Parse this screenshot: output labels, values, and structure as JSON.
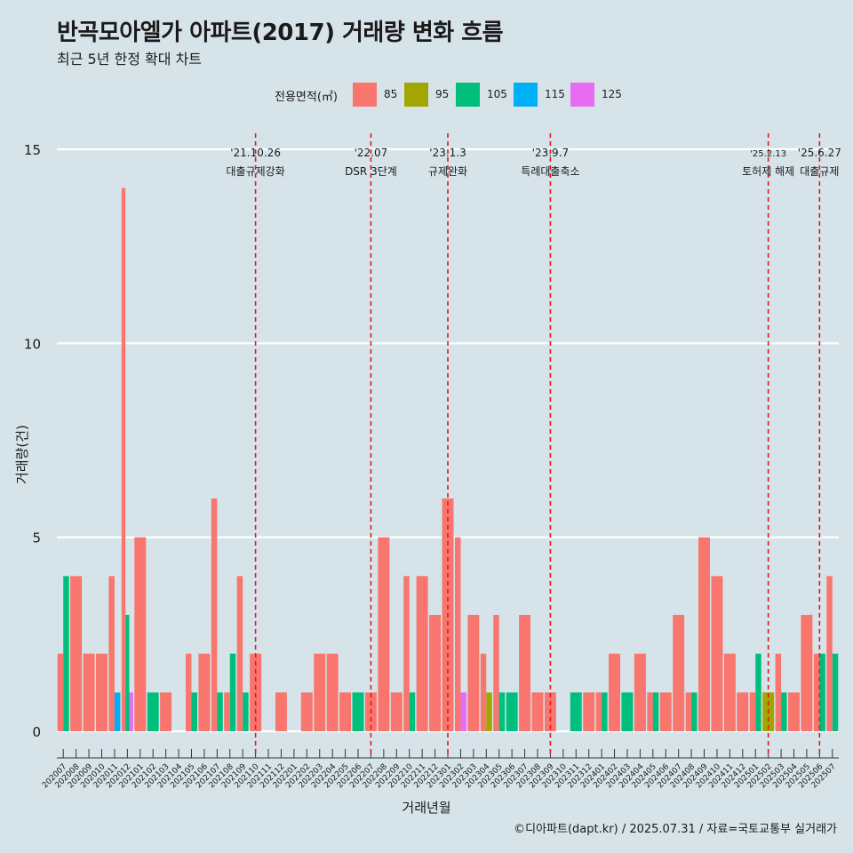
{
  "title": "반곡모아엘가 아파트(2017) 거래량 변화 흐름",
  "subtitle": "최근 5년 한정 확대 차트",
  "legend": {
    "title": "전용면적(㎡)",
    "items": [
      {
        "label": "85",
        "color": "#f8766d"
      },
      {
        "label": "95",
        "color": "#a3a500"
      },
      {
        "label": "105",
        "color": "#00bf7d"
      },
      {
        "label": "115",
        "color": "#00b0f6"
      },
      {
        "label": "125",
        "color": "#e76bf3"
      }
    ]
  },
  "caption": "©디아파트(dapt.kr) / 2025.07.31 / 자료=국토교통부 실거래가",
  "chart_data": {
    "type": "bar",
    "xlabel": "거래년월",
    "ylabel": "거래량(건)",
    "ylim": [
      0,
      15
    ],
    "yticks": [
      0,
      5,
      10,
      15
    ],
    "grid": "horizontal",
    "legend_position": "top",
    "categories": [
      "202007",
      "202008",
      "202009",
      "202010",
      "202011",
      "202012",
      "202101",
      "202102",
      "202103",
      "202104",
      "202105",
      "202106",
      "202107",
      "202108",
      "202109",
      "202110",
      "202111",
      "202112",
      "202201",
      "202202",
      "202203",
      "202204",
      "202205",
      "202206",
      "202207",
      "202208",
      "202209",
      "202210",
      "202211",
      "202212",
      "202301",
      "202302",
      "202303",
      "202304",
      "202305",
      "202306",
      "202307",
      "202308",
      "202309",
      "202310",
      "202311",
      "202312",
      "202401",
      "202402",
      "202403",
      "202404",
      "202405",
      "202406",
      "202407",
      "202408",
      "202409",
      "202410",
      "202411",
      "202412",
      "202501",
      "202502",
      "202503",
      "202504",
      "202505",
      "202506",
      "202507"
    ],
    "tick_labels": [
      "202007",
      "202008",
      "202009",
      "202010",
      "202011",
      "202012",
      "202101",
      "202102",
      "202103",
      "202104",
      "202105",
      "202106",
      "202107",
      "202108",
      "202109",
      "202110",
      "202111",
      "202112",
      "202201",
      "202202",
      "202203",
      "202204",
      "202205",
      "202206",
      "202207",
      "202208",
      "202209",
      "202210",
      "202211",
      "202212",
      "202301",
      "202302",
      "202303",
      "202304",
      "202305",
      "202306",
      "202307",
      "202308",
      "202309",
      "202310",
      "202311",
      "202312",
      "202401",
      "202402",
      "202403",
      "202404",
      "202405",
      "202406",
      "202407",
      "202408",
      "202409",
      "202410",
      "202411",
      "202412",
      "202501",
      "202502",
      "202503",
      "202504",
      "202505",
      "202506",
      "202507"
    ],
    "series": [
      {
        "name": "85",
        "color": "#f8766d",
        "values": [
          2,
          4,
          2,
          2,
          4,
          14,
          5,
          0,
          1,
          0,
          2,
          2,
          6,
          1,
          4,
          2,
          0,
          1,
          0,
          1,
          2,
          2,
          1,
          0,
          1,
          5,
          1,
          4,
          4,
          3,
          6,
          5,
          3,
          2,
          3,
          0,
          3,
          1,
          1,
          0,
          0,
          1,
          1,
          2,
          0,
          2,
          1,
          1,
          3,
          1,
          5,
          4,
          2,
          1,
          1,
          0,
          2,
          1,
          3,
          2,
          4
        ]
      },
      {
        "name": "95",
        "color": "#a3a500",
        "values": [
          0,
          0,
          0,
          0,
          0,
          0,
          0,
          0,
          0,
          0,
          0,
          0,
          0,
          0,
          0,
          0,
          0,
          0,
          0,
          0,
          0,
          0,
          0,
          0,
          0,
          0,
          0,
          0,
          0,
          0,
          0,
          0,
          0,
          1,
          0,
          0,
          0,
          0,
          0,
          0,
          0,
          0,
          0,
          0,
          0,
          0,
          0,
          0,
          0,
          0,
          0,
          0,
          0,
          0,
          0,
          1,
          0,
          0,
          0,
          0,
          0
        ]
      },
      {
        "name": "105",
        "color": "#00bf7d",
        "values": [
          4,
          0,
          0,
          0,
          0,
          3,
          0,
          1,
          0,
          0,
          1,
          0,
          1,
          2,
          1,
          0,
          0,
          0,
          0,
          0,
          0,
          0,
          0,
          1,
          0,
          0,
          0,
          1,
          0,
          0,
          0,
          0,
          0,
          0,
          1,
          1,
          0,
          0,
          0,
          0,
          1,
          0,
          1,
          0,
          1,
          0,
          1,
          0,
          0,
          1,
          0,
          0,
          0,
          0,
          2,
          0,
          1,
          0,
          0,
          2,
          2
        ]
      },
      {
        "name": "115",
        "color": "#00b0f6",
        "values": [
          0,
          0,
          0,
          0,
          1,
          0,
          0,
          0,
          0,
          0,
          0,
          0,
          0,
          0,
          0,
          0,
          0,
          0,
          0,
          0,
          0,
          0,
          0,
          0,
          0,
          0,
          0,
          0,
          0,
          0,
          0,
          0,
          0,
          0,
          0,
          0,
          0,
          0,
          0,
          0,
          0,
          0,
          0,
          0,
          0,
          0,
          0,
          0,
          0,
          0,
          0,
          0,
          0,
          0,
          0,
          0,
          0,
          0,
          0,
          0,
          0
        ]
      },
      {
        "name": "125",
        "color": "#e76bf3",
        "values": [
          0,
          0,
          0,
          0,
          0,
          1,
          0,
          0,
          0,
          0,
          0,
          0,
          0,
          0,
          0,
          0,
          0,
          0,
          0,
          0,
          0,
          0,
          0,
          0,
          0,
          0,
          0,
          0,
          0,
          0,
          0,
          1,
          0,
          0,
          0,
          0,
          0,
          0,
          0,
          0,
          0,
          0,
          0,
          0,
          0,
          0,
          0,
          0,
          0,
          0,
          0,
          0,
          0,
          0,
          0,
          0,
          0,
          0,
          0,
          0,
          0
        ]
      }
    ],
    "annotations": [
      {
        "x": "202110",
        "date": "'21.10.26",
        "text": "대출규제강화"
      },
      {
        "x": "202207",
        "date": "'22.07",
        "text": "DSR 3단계"
      },
      {
        "x": "202301",
        "date": "'23.1.3",
        "text": "규제완화"
      },
      {
        "x": "202309",
        "date": "'23.9.7",
        "text": "특례대출축소"
      },
      {
        "x": "202502",
        "date": "'25.2.13",
        "text": "토허제 해제"
      },
      {
        "x": "202506",
        "date": "'25.6.27",
        "text": "대출규제"
      }
    ],
    "annotation_line_color": "#e8161e"
  }
}
